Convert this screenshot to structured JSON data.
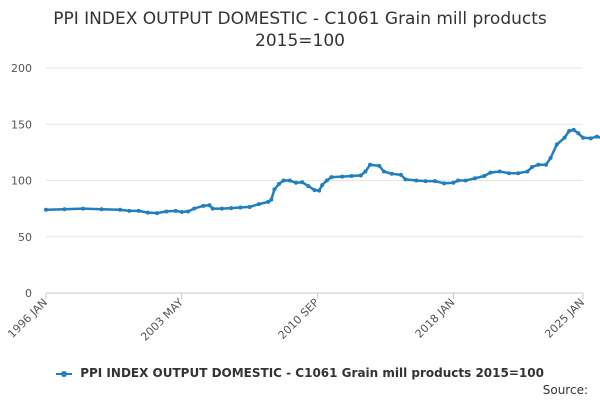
{
  "chart_data": {
    "type": "line",
    "title": "PPI INDEX OUTPUT DOMESTIC - C1061 Grain mill products",
    "subtitle": "2015=100",
    "xlabel": "",
    "ylabel": "",
    "x_range": [
      "1996-01",
      "2025-01"
    ],
    "ylim": [
      0,
      200
    ],
    "y_ticks": [
      0,
      50,
      100,
      150,
      200
    ],
    "x_ticks": [
      {
        "date": "1996-01",
        "label": "1996 JAN"
      },
      {
        "date": "2003-05",
        "label": "2003 MAY"
      },
      {
        "date": "2010-09",
        "label": "2010 SEP"
      },
      {
        "date": "2018-01",
        "label": "2018 JAN"
      },
      {
        "date": "2025-01",
        "label": "2025 JAN"
      }
    ],
    "grid": "horizontal",
    "legend_position": "bottom",
    "series": [
      {
        "name": "PPI INDEX OUTPUT DOMESTIC - C1061 Grain mill products 2015=100",
        "color": "#1f7fbf",
        "points": [
          [
            "1996-01",
            74
          ],
          [
            "1997-01",
            74.5
          ],
          [
            "1998-01",
            75
          ],
          [
            "1999-01",
            74.5
          ],
          [
            "2000-01",
            74
          ],
          [
            "2000-07",
            73
          ],
          [
            "2001-01",
            73
          ],
          [
            "2001-07",
            71.5
          ],
          [
            "2002-01",
            71
          ],
          [
            "2002-07",
            72.5
          ],
          [
            "2003-01",
            73
          ],
          [
            "2003-05",
            72
          ],
          [
            "2003-09",
            72.5
          ],
          [
            "2004-01",
            75
          ],
          [
            "2004-07",
            77.5
          ],
          [
            "2004-11",
            78
          ],
          [
            "2005-01",
            75
          ],
          [
            "2005-07",
            75
          ],
          [
            "2006-01",
            75.5
          ],
          [
            "2006-07",
            76
          ],
          [
            "2007-01",
            76.5
          ],
          [
            "2007-07",
            79
          ],
          [
            "2008-01",
            81
          ],
          [
            "2008-03",
            83
          ],
          [
            "2008-05",
            92
          ],
          [
            "2008-08",
            97
          ],
          [
            "2008-11",
            100
          ],
          [
            "2009-03",
            100
          ],
          [
            "2009-07",
            98
          ],
          [
            "2009-11",
            98.5
          ],
          [
            "2010-03",
            95
          ],
          [
            "2010-07",
            91.5
          ],
          [
            "2010-10",
            91
          ],
          [
            "2010-12",
            96
          ],
          [
            "2011-03",
            100
          ],
          [
            "2011-06",
            103
          ],
          [
            "2012-01",
            103.5
          ],
          [
            "2012-07",
            104
          ],
          [
            "2013-01",
            104.5
          ],
          [
            "2013-04",
            108
          ],
          [
            "2013-07",
            114
          ],
          [
            "2014-01",
            113
          ],
          [
            "2014-04",
            108
          ],
          [
            "2014-09",
            106
          ],
          [
            "2015-03",
            105
          ],
          [
            "2015-06",
            101
          ],
          [
            "2016-01",
            100
          ],
          [
            "2016-07",
            99.5
          ],
          [
            "2017-01",
            99.5
          ],
          [
            "2017-07",
            97.5
          ],
          [
            "2018-01",
            98
          ],
          [
            "2018-04",
            100
          ],
          [
            "2018-09",
            100
          ],
          [
            "2019-03",
            102
          ],
          [
            "2019-09",
            104
          ],
          [
            "2020-01",
            107
          ],
          [
            "2020-07",
            108
          ],
          [
            "2021-01",
            106.5
          ],
          [
            "2021-07",
            106.5
          ],
          [
            "2022-01",
            108
          ],
          [
            "2022-04",
            112
          ],
          [
            "2022-08",
            114
          ],
          [
            "2023-01",
            114
          ],
          [
            "2023-04",
            120
          ],
          [
            "2023-08",
            132
          ],
          [
            "2024-01",
            138
          ],
          [
            "2024-04",
            144
          ],
          [
            "2024-07",
            145
          ],
          [
            "2024-10",
            142
          ],
          [
            "2025-01",
            138
          ],
          [
            "2025-06",
            137.5
          ],
          [
            "2025-10",
            139
          ],
          [
            "2026-01",
            138
          ]
        ]
      }
    ],
    "source_label": "Source:"
  }
}
